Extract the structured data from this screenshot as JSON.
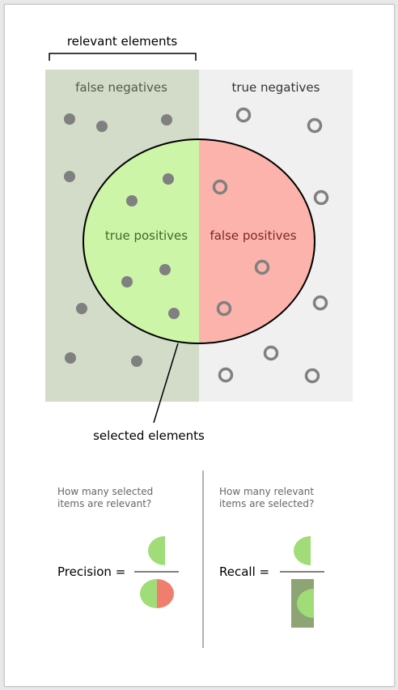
{
  "diagram": {
    "relevant_label": "relevant elements",
    "fn_label": "false negatives",
    "tn_label": "true negatives",
    "tp_label": "true positives",
    "fp_label": "false positives",
    "selected_label": "selected elements",
    "precision_question_line1": "How many selected",
    "precision_question_line2": "items are relevant?",
    "recall_question_line1": "How many relevant",
    "recall_question_line2": "items are selected?",
    "precision_label": "Precision =",
    "recall_label": "Recall =",
    "colors": {
      "relevant_bg": "#d2dcc9",
      "irrelevant_bg": "#f0f0f0",
      "tp": "#ccf5a8",
      "fp": "#fbb3ab",
      "dot": "#808080",
      "formula_green": "#a0dc78",
      "formula_red": "#f07e6e",
      "recall_rect": "#8ea474"
    },
    "dot_icon": "filled-circle",
    "ring_icon": "hollow-circle"
  }
}
